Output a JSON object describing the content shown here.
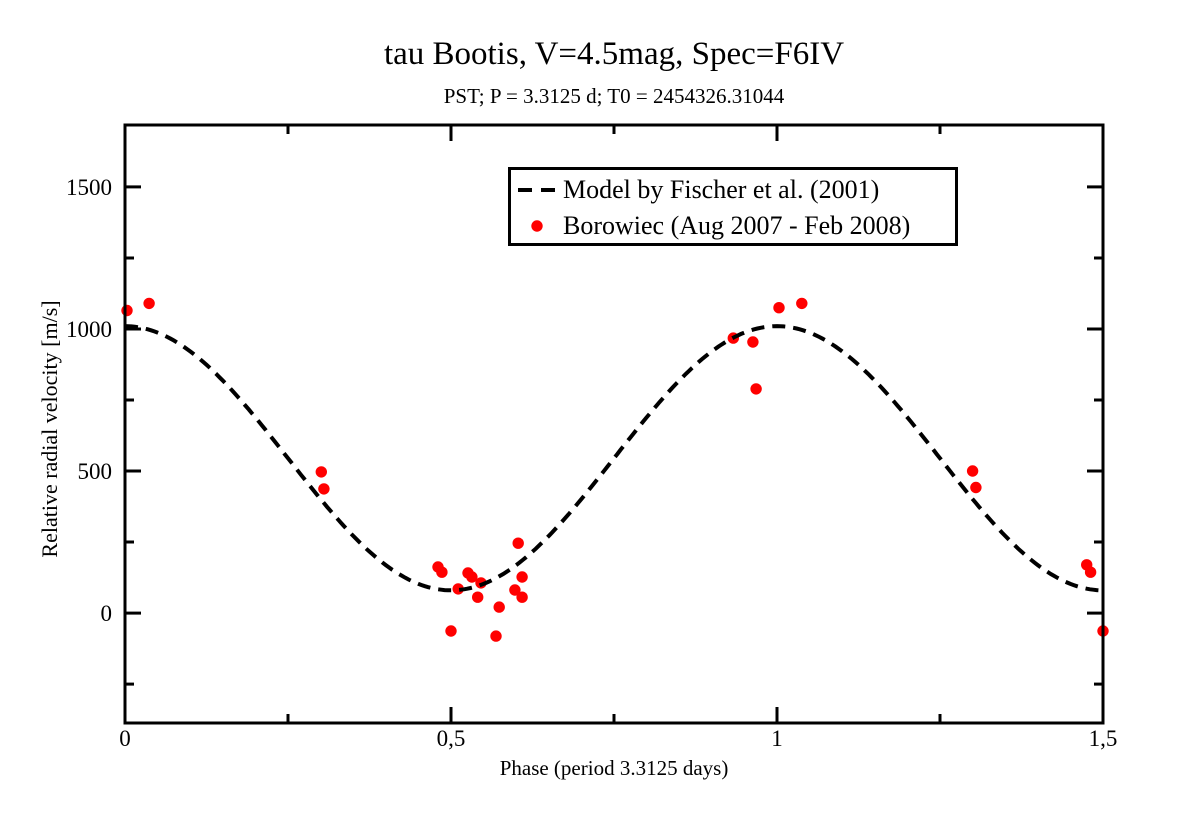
{
  "chart_data": {
    "type": "scatter",
    "title": "tau Bootis, V=4.5mag, Spec=F6IV",
    "subtitle": "PST; P = 3.3125 d; T0 = 2454326.31044",
    "xlabel": "Phase (period 3.3125 days)",
    "ylabel": "Relative radial velocity [m/s]",
    "xlim": [
      0,
      1.5
    ],
    "ylim": [
      -387,
      1718
    ],
    "grid": false,
    "decimal_separator": ",",
    "x_ticks": {
      "major": [
        0,
        0.5,
        1,
        1.5
      ],
      "labels": [
        "0",
        "0,5",
        "1",
        "1,5"
      ],
      "minor": [
        0.25,
        0.75,
        1.25
      ]
    },
    "y_ticks": {
      "major": [
        0,
        500,
        1000,
        1500
      ],
      "labels": [
        "0",
        "500",
        "1000",
        "1500"
      ],
      "minor": [
        -250,
        250,
        750,
        1250
      ]
    },
    "legend_position": "top-center-inside",
    "legend": [
      {
        "label": "Model by Fischer et al. (2001)",
        "symbol": "dashed-line",
        "color": "#000000"
      },
      {
        "label": "Borowiec (Aug 2007 - Feb 2008)",
        "symbol": "dot",
        "color": "#ff0000"
      }
    ],
    "model_curve": {
      "name": "Model by Fischer et al. (2001)",
      "function": "v(phase) = offset + amplitude * cos(2*pi*phase)",
      "offset": 545,
      "amplitude": 465
    },
    "series": [
      {
        "name": "Borowiec (Aug 2007 - Feb 2008)",
        "points": [
          [
            0.003,
            1065
          ],
          [
            0.037,
            1090
          ],
          [
            0.301,
            497
          ],
          [
            0.305,
            437
          ],
          [
            0.48,
            162
          ],
          [
            0.486,
            144
          ],
          [
            0.5,
            -63
          ],
          [
            0.511,
            85
          ],
          [
            0.526,
            141
          ],
          [
            0.532,
            127
          ],
          [
            0.541,
            56
          ],
          [
            0.546,
            106
          ],
          [
            0.569,
            -81
          ],
          [
            0.574,
            21
          ],
          [
            0.598,
            81
          ],
          [
            0.603,
            246
          ],
          [
            0.609,
            127
          ],
          [
            0.609,
            56
          ],
          [
            0.933,
            968
          ],
          [
            0.963,
            954
          ],
          [
            0.968,
            789
          ],
          [
            1.003,
            1075
          ],
          [
            1.038,
            1090
          ],
          [
            1.3,
            500
          ],
          [
            1.305,
            442
          ],
          [
            1.475,
            170
          ],
          [
            1.481,
            144
          ],
          [
            1.5,
            -63
          ]
        ]
      }
    ],
    "colors": {
      "model": "#000000",
      "points": "#ff0000",
      "axis": "#000000",
      "background": "#ffffff"
    }
  }
}
